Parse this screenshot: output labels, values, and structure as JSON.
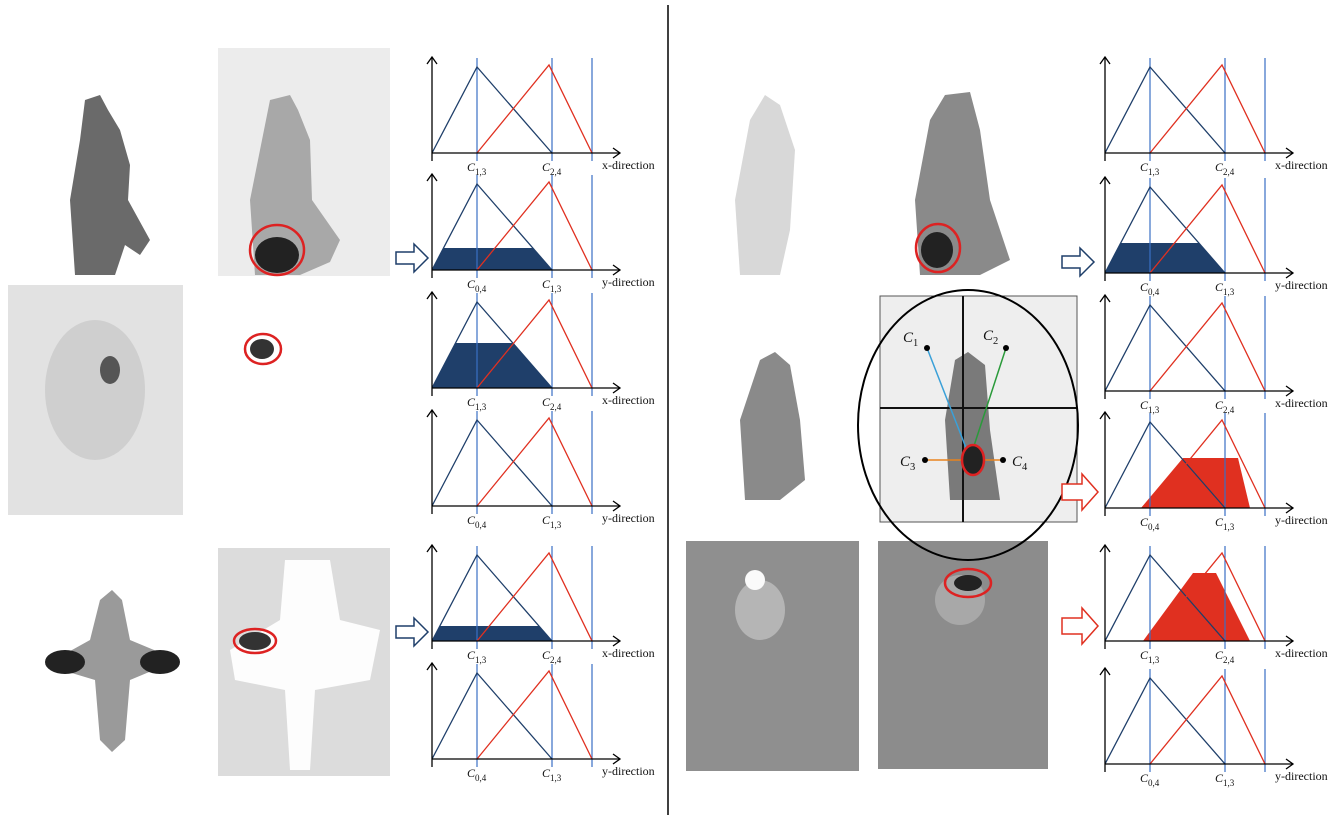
{
  "left": {
    "plots": [
      {
        "labels": [
          {
            "letter": "C",
            "sub": "1,3"
          },
          {
            "letter": "C",
            "sub": "2,4"
          }
        ],
        "axis": "x-direction"
      },
      {
        "labels": [
          {
            "letter": "C",
            "sub": "0,4"
          },
          {
            "letter": "C",
            "sub": "1,3"
          }
        ],
        "axis": "y-direction"
      },
      {
        "labels": [
          {
            "letter": "C",
            "sub": "1,3"
          },
          {
            "letter": "C",
            "sub": "2,4"
          }
        ],
        "axis": "x-direction"
      },
      {
        "labels": [
          {
            "letter": "C",
            "sub": "0,4"
          },
          {
            "letter": "C",
            "sub": "1,3"
          }
        ],
        "axis": "y-direction"
      },
      {
        "labels": [
          {
            "letter": "C",
            "sub": "1,3"
          },
          {
            "letter": "C",
            "sub": "2,4"
          }
        ],
        "axis": "x-direction"
      },
      {
        "labels": [
          {
            "letter": "C",
            "sub": "0,4"
          },
          {
            "letter": "C",
            "sub": "1,3"
          }
        ],
        "axis": "y-direction"
      }
    ]
  },
  "right": {
    "plots": [
      {
        "labels": [
          {
            "letter": "C",
            "sub": "1,3"
          },
          {
            "letter": "C",
            "sub": "2,4"
          }
        ],
        "axis": "x-direction"
      },
      {
        "labels": [
          {
            "letter": "C",
            "sub": "0,4"
          },
          {
            "letter": "C",
            "sub": "1,3"
          }
        ],
        "axis": "y-direction"
      },
      {
        "labels": [
          {
            "letter": "C",
            "sub": "1,3"
          },
          {
            "letter": "C",
            "sub": "2,4"
          }
        ],
        "axis": "x-direction"
      },
      {
        "labels": [
          {
            "letter": "C",
            "sub": "0,4"
          },
          {
            "letter": "C",
            "sub": "1,3"
          }
        ],
        "axis": "y-direction"
      },
      {
        "labels": [
          {
            "letter": "C",
            "sub": "1,3"
          },
          {
            "letter": "C",
            "sub": "2,4"
          }
        ],
        "axis": "x-direction"
      },
      {
        "labels": [
          {
            "letter": "C",
            "sub": "0,4"
          },
          {
            "letter": "C",
            "sub": "1,3"
          }
        ],
        "axis": "y-direction"
      }
    ],
    "grid_labels": [
      {
        "letter": "C",
        "sub": "1"
      },
      {
        "letter": "C",
        "sub": "2"
      },
      {
        "letter": "C",
        "sub": "3"
      },
      {
        "letter": "C",
        "sub": "4"
      }
    ]
  }
}
